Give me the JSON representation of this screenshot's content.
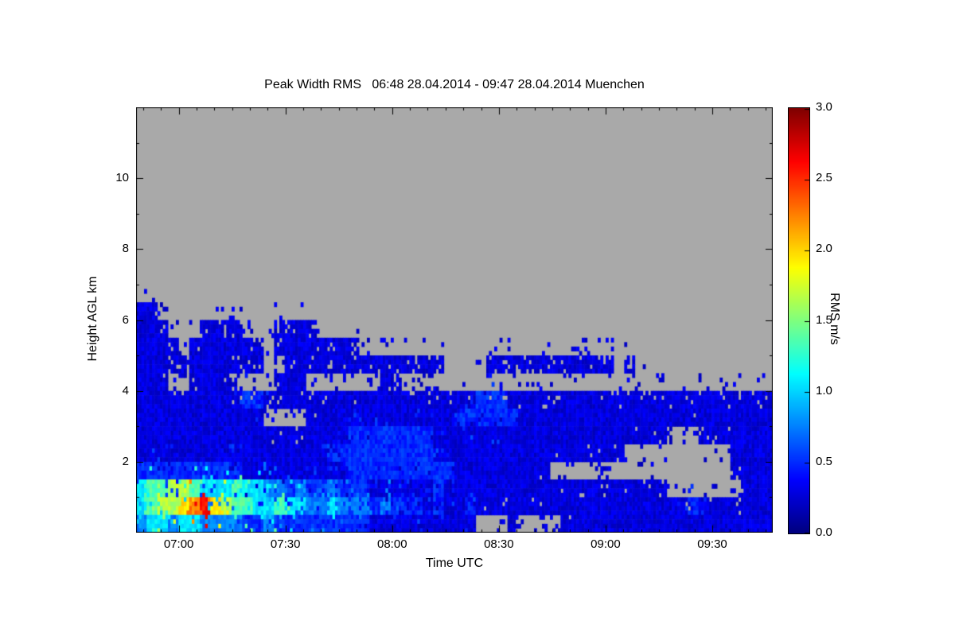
{
  "chart_data": {
    "type": "heatmap",
    "title": "Peak Width RMS   06:48 28.04.2014 - 09:47 28.04.2014 Muenchen",
    "xlabel": "Time UTC",
    "ylabel": "Height AGL km",
    "value_label": "RMS m/s",
    "value_range": [
      0,
      3
    ],
    "x_axis": {
      "start": "06:48",
      "end": "09:47",
      "start_min": 408,
      "end_min": 587,
      "minor_step_min": 5,
      "major_ticks": [
        {
          "min": 420,
          "label": "07:00"
        },
        {
          "min": 450,
          "label": "07:30"
        },
        {
          "min": 480,
          "label": "08:00"
        },
        {
          "min": 510,
          "label": "08:30"
        },
        {
          "min": 540,
          "label": "09:00"
        },
        {
          "min": 570,
          "label": "09:30"
        }
      ]
    },
    "y_axis": {
      "min_km": 0,
      "max_km": 12,
      "minor_step_km": 1,
      "major_ticks": [
        {
          "km": 2,
          "label": "2"
        },
        {
          "km": 4,
          "label": "4"
        },
        {
          "km": 6,
          "label": "6"
        },
        {
          "km": 8,
          "label": "8"
        },
        {
          "km": 10,
          "label": "10"
        }
      ]
    },
    "colorbar": {
      "label": "RMS m/s",
      "min": 0,
      "max": 3,
      "colormap": "jet",
      "ticks": [
        {
          "value": 0.0,
          "label": "0.0"
        },
        {
          "value": 0.5,
          "label": "0.5"
        },
        {
          "value": 1.0,
          "label": "1.0"
        },
        {
          "value": 1.5,
          "label": "1.5"
        },
        {
          "value": 2.0,
          "label": "2.0"
        },
        {
          "value": 2.5,
          "label": "2.5"
        },
        {
          "value": 3.0,
          "label": "3.0"
        }
      ]
    },
    "no_data_color": "#a9a9a9",
    "grid": {
      "description": "RMS m/s values; '.' = no data (gray). Rows top-to-bottom, 0.5 km per row from 12 km down to 0 km; 60 columns of 3 min from 06:48 to 09:47.",
      "n_cols": 60,
      "col_minutes": 3,
      "row_km": 0.5,
      "encoding": {
        ".": null,
        "a": 0.12,
        "b": 0.28,
        "c": 0.5,
        "d": 0.75,
        "e": 1.05,
        "f": 1.35,
        "g": 1.65,
        "h": 1.95,
        "i": 2.25,
        "j": 2.6
      },
      "rows_top_to_bottom": [
        ".",
        ".",
        ".",
        ".",
        ".",
        ".",
        ".",
        ".",
        ".",
        ".",
        ".",
        "bb",
        "bbb...bbbb...bbbb",
        "bbbb.bbbbbbb.bbbbbbbb",
        "bbbbbbbbbbbb..bbbbbbbbbbbbbbb....bbbbbbbbbbbb.b",
        "bbb..bbbb....bbb.......bb",
        "bbbbbbbbbbccbbbbbbbbbbbbbbbbbbbbcccbbbbbbbbbbbbbbbbbbbbbbbbb",
        "bbbbbbbbbbbb....bbbbbbbbbbbbbbccccccbbbbbbbbbbbbbbbbbbbbbbbb",
        "bbbbbbbbbbbbbbbbbbbbccccccccbbbbbbbbbbbbbbbbbbbbbb...bbbbbbb",
        "bbbbbbbbbbbbbbbbbbccccccccccbbbbbbbbbbbbbbbbbb..........bbbb",
        "ccccccccccbbbbbbbbbbccccccccccbbbbbbbbb.................bbbb",
        "effggfeeefeeddcdccdcccbbbbbbcbbbbbbbbbbbbbbbbbbbbb.......bbbb",
        "efgghijhgffeefeeddedddcdcccbcbbcbbbbbbbbbbbbbbbbbbbbcbbbbbbb",
        "deedeeddddccdcccccccccbbbbbbbbbb...b....bbbbbbbbbbbbbbbbbbbb"
      ]
    }
  }
}
